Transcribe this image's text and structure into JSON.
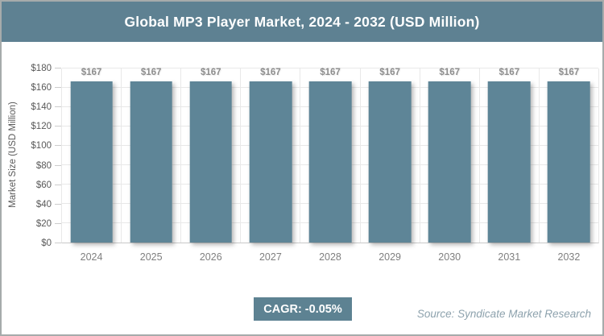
{
  "header": {
    "title": "Global MP3 Player Market, 2024 - 2032 (USD Million)"
  },
  "chart_data": {
    "type": "bar",
    "title": "Global MP3 Player Market, 2024 - 2032 (USD Million)",
    "categories": [
      "2024",
      "2025",
      "2026",
      "2027",
      "2028",
      "2029",
      "2030",
      "2031",
      "2032"
    ],
    "values": [
      167,
      167,
      167,
      167,
      167,
      167,
      167,
      167,
      167
    ],
    "bar_labels": [
      "$167",
      "$167",
      "$167",
      "$167",
      "$167",
      "$167",
      "$167",
      "$167",
      "$167"
    ],
    "xlabel": "",
    "ylabel": "Market Size (USD Million)",
    "ylim": [
      0,
      180
    ],
    "ytick_values": [
      0,
      20,
      40,
      60,
      80,
      100,
      120,
      140,
      160,
      180
    ],
    "ytick_labels": [
      "$0",
      "$20",
      "$40",
      "$60",
      "$80",
      "$100",
      "$120",
      "$140",
      "$160",
      "$180"
    ],
    "grid": "horizontal and vertical, light gray",
    "legend": "none",
    "bar_color": "#5e8597"
  },
  "footer": {
    "cagr_label": "CAGR: -0.05%",
    "source": "Source: Syndicate Market Research"
  },
  "colors": {
    "header_bg": "#5e8192",
    "badge_bg": "#5d8292",
    "bar": "#5e8597",
    "title_text": "#ffffff",
    "axis_text": "#595959",
    "bar_label_text": "#8e8e8e",
    "xlabel_text": "#7f7f7f",
    "gridline": "#e8e8e8",
    "axis_line": "#c9c9c9",
    "source_text": "#8da2ad",
    "border": "#a6abab"
  }
}
